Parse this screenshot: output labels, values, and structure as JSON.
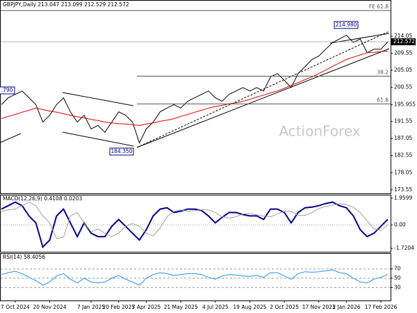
{
  "chart_data": [
    {
      "type": "line",
      "title": "GBPJPY,Daily",
      "ohlc": [
        213.047,
        213.099,
        212.529
      ],
      "ylim": [
        172.6,
        223.4
      ],
      "yticks": [
        173.55,
        178.05,
        182.55,
        187.05,
        191.55,
        195.955,
        200.55,
        205.05,
        209.55,
        214.05
      ],
      "series": [
        {
          "color": "#000000",
          "values": [
            196.0,
            197.8,
            198.7,
            199.6,
            197.8,
            196.0,
            191.4,
            193.2,
            196.0,
            197.8,
            194.1,
            191.4,
            193.2,
            189.6,
            190.5,
            188.7,
            191.4,
            194.1,
            193.2,
            191.4,
            185.9,
            189.6,
            191.4,
            194.1,
            195.1,
            196.0,
            195.1,
            196.9,
            197.8,
            198.7,
            199.6,
            197.8,
            196.9,
            198.7,
            199.6,
            200.5,
            199.6,
            200.5,
            199.6,
            203.3,
            204.2,
            202.4,
            200.5,
            204.2,
            206.0,
            207.9,
            208.8,
            210.6,
            212.4,
            213.3,
            214.3,
            212.4,
            213.3,
            209.7,
            210.6,
            210.6,
            212.572
          ]
        },
        {
          "color": "#e00000",
          "values": [
            192.3,
            192.9,
            193.4,
            194.0,
            194.5,
            195.1,
            194.7,
            194.3,
            194.0,
            193.6,
            193.2,
            192.8,
            192.5,
            192.1,
            191.8,
            191.4,
            191.2,
            191.0,
            190.9,
            190.7,
            190.5,
            190.9,
            191.2,
            191.6,
            191.9,
            192.3,
            192.9,
            193.4,
            194.0,
            194.5,
            195.1,
            195.5,
            195.8,
            196.2,
            196.5,
            196.9,
            197.4,
            198.0,
            198.5,
            199.1,
            199.6,
            200.3,
            201.1,
            201.8,
            202.6,
            203.3,
            204.2,
            205.1,
            206.1,
            207.0,
            207.9,
            208.5,
            209.1,
            209.7,
            209.8,
            210.0,
            210.1
          ]
        }
      ],
      "levels": [
        {
          "label": "FE 61.8",
          "value": 220.8
        },
        {
          "label": "38.2",
          "value": 203.5
        },
        {
          "label": "61.8",
          "value": 196.2
        }
      ],
      "annotations": [
        {
          "value": 214.98,
          "label": "214.980"
        },
        {
          "value": 184.35,
          "label": "184.350"
        },
        {
          "label": ".790"
        }
      ],
      "watermark": "ActionForex"
    },
    {
      "type": "line",
      "title": "MACD(12,26,9)",
      "ylim": [
        -1.97,
        2.16
      ],
      "yticks": [
        1.9599,
        {
          "value": 0,
          "label": "0.00"
        },
        -1.7204
      ],
      "series": [
        {
          "color": "#00008b",
          "values": [
            1.16,
            1.41,
            1.67,
            1.41,
            0.66,
            0.15,
            -1.62,
            -1.11,
            0.66,
            1.16,
            0.15,
            -0.86,
            0.15,
            -0.61,
            -0.86,
            -0.86,
            -0.1,
            0.4,
            -0.1,
            -0.61,
            -1.11,
            -0.35,
            0.66,
            1.16,
            1.26,
            0.91,
            1.01,
            1.16,
            1.16,
            1.06,
            0.66,
            0.15,
            0.56,
            0.91,
            0.91,
            0.76,
            0.66,
            0.66,
            0.4,
            1.16,
            1.16,
            0.91,
            0.15,
            0.91,
            1.26,
            1.31,
            1.41,
            1.57,
            1.67,
            1.41,
            1.26,
            0.66,
            -0.35,
            -0.86,
            -0.61,
            -0.1,
            0.4108
          ]
        },
        {
          "color": "#a0a0a0",
          "values": [
            1.0,
            1.1,
            1.16,
            1.41,
            1.67,
            1.41,
            0.66,
            0.15,
            -1.0,
            -0.9,
            0.66,
            0.9,
            0.15,
            -0.5,
            -0.3,
            -0.6,
            -0.86,
            -0.6,
            -0.1,
            0.1,
            -0.1,
            -0.6,
            -0.8,
            -0.2,
            0.6,
            1.0,
            1.1,
            1.0,
            1.05,
            1.1,
            1.1,
            0.9,
            0.6,
            0.5,
            0.6,
            0.8,
            0.85,
            0.75,
            0.65,
            0.6,
            0.8,
            1.0,
            1.0,
            0.7,
            0.7,
            0.9,
            1.2,
            1.35,
            1.45,
            1.55,
            1.5,
            1.3,
            0.9,
            0.3,
            -0.3,
            -0.4,
            0.0203
          ]
        }
      ]
    },
    {
      "type": "line",
      "title": "RSI(14)",
      "ylim": [
        2,
        102.6
      ],
      "yticks": [
        30,
        50,
        70
      ],
      "grid": true,
      "categories": [
        null,
        null,
        "7 Oct 2024",
        null,
        null,
        null,
        null,
        "20 Nov 2024",
        null,
        null,
        null,
        null,
        null,
        "7 Jan 2025",
        null,
        null,
        null,
        "20 Feb 2025",
        null,
        null,
        null,
        "7 Apr 2025",
        null,
        null,
        null,
        null,
        "21 May 2025",
        null,
        null,
        null,
        null,
        "4 Jul 2025",
        null,
        null,
        null,
        null,
        "19 Aug 2025",
        null,
        null,
        null,
        null,
        "2 Oct 2025",
        null,
        null,
        null,
        null,
        "17 Nov 2025",
        null,
        null,
        null,
        "2 Jan 2026",
        null,
        null,
        null,
        null,
        "17 Feb 2026",
        null
      ],
      "series": [
        {
          "color": "#1e90ff",
          "values": [
            58,
            62,
            65,
            60,
            52,
            45,
            35,
            42,
            55,
            60,
            48,
            40,
            50,
            42,
            40,
            42,
            50,
            56,
            48,
            42,
            35,
            50,
            58,
            62,
            60,
            56,
            58,
            60,
            60,
            58,
            52,
            48,
            55,
            58,
            57,
            55,
            54,
            56,
            52,
            62,
            62,
            55,
            48,
            60,
            64,
            63,
            64,
            66,
            68,
            62,
            60,
            50,
            42,
            40,
            48,
            52,
            58.4056
          ]
        }
      ]
    }
  ]
}
